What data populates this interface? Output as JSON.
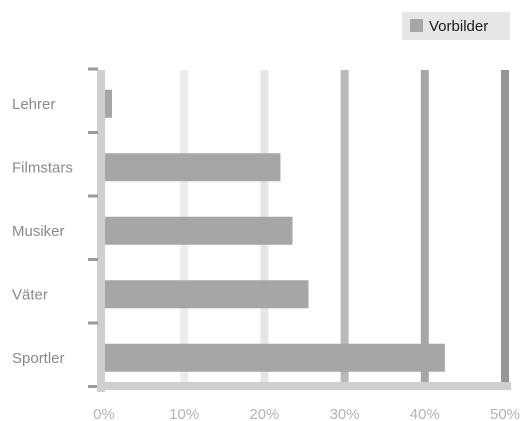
{
  "chart_data": {
    "type": "bar",
    "orientation": "horizontal",
    "categories": [
      "Lehrer",
      "Filmstars",
      "Musiker",
      "Väter",
      "Sportler"
    ],
    "series": [
      {
        "name": "Vorbilder",
        "values": [
          1,
          22,
          23.5,
          25.5,
          42.5
        ]
      }
    ],
    "xlim": [
      0,
      50
    ],
    "ticks": [
      "0%",
      "10%",
      "20%",
      "30%",
      "40%",
      "50%"
    ],
    "tick_values": [
      0,
      10,
      20,
      30,
      40,
      50
    ],
    "grid": true,
    "legend_position": "top-right",
    "colors": {
      "bar": "#a6a6a6",
      "legend_bg": "#e6e6e6",
      "axis": "#cfcfcf",
      "grid": [
        "#ececec",
        "#ececec",
        "#e6e6e6",
        "#b9b9b9",
        "#a6a6a6",
        "#969696"
      ]
    }
  }
}
